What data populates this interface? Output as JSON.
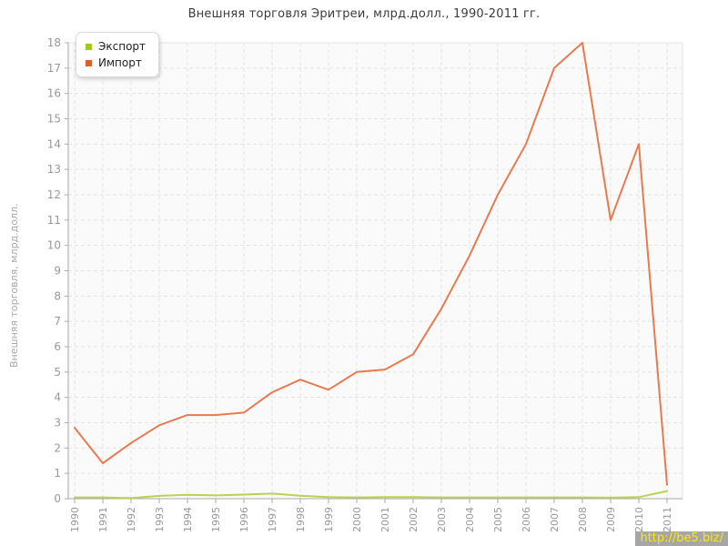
{
  "chart_data": {
    "type": "line",
    "title": "Внешняя торговля Эритреи, млрд.долл., 1990-2011 гг.",
    "ylabel": "Внешняя торговля, млрд.долл.",
    "ylim": [
      0,
      18
    ],
    "ytick_step": 1,
    "grid": true,
    "legend_position": "top-left",
    "x": [
      1990,
      1991,
      1992,
      1993,
      1994,
      1995,
      1996,
      1997,
      1998,
      1999,
      2000,
      2001,
      2002,
      2003,
      2004,
      2005,
      2006,
      2007,
      2008,
      2009,
      2010,
      2011
    ],
    "series": [
      {
        "id": "export",
        "name": "Экспорт",
        "color": "#b9d254",
        "swatch": "#a2c821",
        "values": [
          0.05,
          0.05,
          0.02,
          0.11,
          0.15,
          0.13,
          0.16,
          0.2,
          0.12,
          0.06,
          0.05,
          0.06,
          0.06,
          0.05,
          0.05,
          0.05,
          0.05,
          0.05,
          0.05,
          0.04,
          0.06,
          0.3
        ]
      },
      {
        "id": "import",
        "name": "Импорт",
        "color": "#e77a50",
        "swatch": "#dc6029",
        "values": [
          2.8,
          1.4,
          2.2,
          2.9,
          3.3,
          3.3,
          3.4,
          4.2,
          4.7,
          4.3,
          5.0,
          5.1,
          5.7,
          7.5,
          9.6,
          12.0,
          14.0,
          17.0,
          18.0,
          11.0,
          14.0,
          0.55
        ]
      }
    ]
  },
  "colors": {
    "axis": "#a9a9a9",
    "grid": "#e4e4e4",
    "plot_bg": "#fafafa",
    "tick_label": "#999999",
    "title": "#3c3c3c"
  },
  "watermark": {
    "text": "http://be5.biz/",
    "bg": "#a6a6a6",
    "fg": "#ffe800"
  }
}
